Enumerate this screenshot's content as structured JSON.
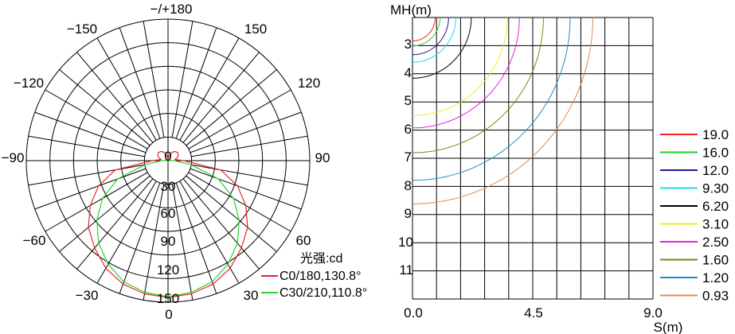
{
  "chart_data": [
    {
      "type": "polar",
      "unit_label": "光强:cd",
      "angle_labels": [
        "−/+180",
        "−150",
        "150",
        "−120",
        "120",
        "−90",
        "90",
        "−60",
        "60",
        "−30",
        "30",
        "0"
      ],
      "radial_labels": [
        "0",
        "30",
        "60",
        "90",
        "120",
        "150"
      ],
      "radial_max": 180,
      "colors": {
        "c0": "#e8262b",
        "c30": "#2bd22b"
      },
      "series": [
        {
          "name": "C0/180,130.8°",
          "color": "#e8262b",
          "angles": [
            0,
            10,
            20,
            30,
            40,
            50,
            60,
            70,
            80,
            90,
            100,
            110,
            120,
            130,
            140,
            150,
            160,
            170,
            180
          ],
          "values": [
            174,
            172,
            167,
            158,
            145,
            132,
            114,
            94,
            68,
            20,
            9,
            13,
            15,
            16,
            15,
            13,
            9,
            4,
            0
          ]
        },
        {
          "name": "C30/210,110.8°",
          "color": "#2bd22b",
          "angles": [
            0,
            10,
            20,
            30,
            40,
            50,
            60,
            70,
            80,
            90
          ],
          "values": [
            173,
            170,
            164,
            152,
            137,
            118,
            96,
            68,
            30,
            8
          ]
        }
      ]
    },
    {
      "type": "line",
      "ylabel": "MH(m)",
      "xlabel": "S(m)",
      "x_ticks": [
        "0.0",
        "4.5",
        "9.0"
      ],
      "y_ticks": [
        "3",
        "4",
        "5",
        "6",
        "7",
        "8",
        "9",
        "10",
        "11"
      ],
      "xlim": [
        0,
        9
      ],
      "ylim": [
        2.2,
        12.4
      ],
      "legend": {
        "position": "right"
      },
      "series": [
        {
          "name": "19.0",
          "color": "#ff2020",
          "radius": 0.85,
          "center": 2.2
        },
        {
          "name": "16.0",
          "color": "#22cc22",
          "radius": 1.03,
          "center": 2.2
        },
        {
          "name": "12.0",
          "color": "#1a1aa0",
          "radius": 1.35,
          "center": 2.2
        },
        {
          "name": "9.30",
          "color": "#22d8ee",
          "radius": 1.62,
          "center": 2.2
        },
        {
          "name": "6.20",
          "color": "#000000",
          "radius": 2.2,
          "center": 2.2
        },
        {
          "name": "3.10",
          "color": "#eeee22",
          "radius": 3.55,
          "center": 2.2
        },
        {
          "name": "2.50",
          "color": "#dd22dd",
          "radius": 4.0,
          "center": 2.2
        },
        {
          "name": "1.60",
          "color": "#7a8a10",
          "radius": 4.9,
          "center": 2.2
        },
        {
          "name": "1.20",
          "color": "#1f8fc8",
          "radius": 5.9,
          "center": 2.2
        },
        {
          "name": "0.93",
          "color": "#e08a50",
          "radius": 6.75,
          "center": 2.2
        }
      ]
    }
  ]
}
